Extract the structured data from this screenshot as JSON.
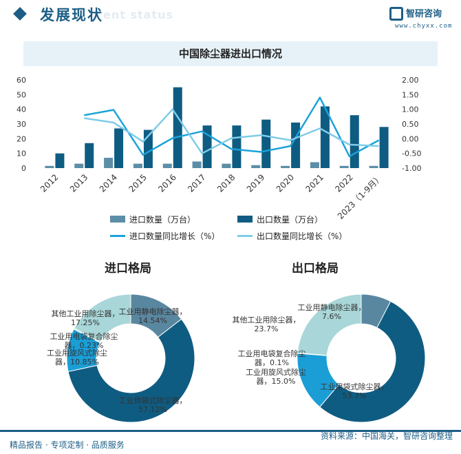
{
  "header": {
    "section_title": "发展现状",
    "section_subtitle": "ent status",
    "logo_name": "智研咨询",
    "logo_url": "www.chyxx.com"
  },
  "chart_title": "中国除尘器进出口情况",
  "colors": {
    "brand": "#1c5e86",
    "import_bar": "#5c8ea7",
    "export_bar": "#0f5c82",
    "import_growth": "#1aa3d9",
    "export_growth": "#7fcbe9",
    "title_bar_bg": "#e7f2f8"
  },
  "chart_data": [
    {
      "type": "bar",
      "categories": [
        "2012",
        "2013",
        "2014",
        "2015",
        "2016",
        "2017",
        "2018",
        "2019",
        "2020",
        "2021",
        "2022",
        "2023（1-9月）"
      ],
      "series": [
        {
          "name": "进口数量（万台）",
          "axis": "left",
          "values": [
            1.5,
            3,
            7,
            3,
            3,
            4.5,
            3,
            2,
            1.5,
            4,
            1.5,
            1.5
          ]
        },
        {
          "name": "出口数量（万台）",
          "axis": "left",
          "values": [
            10,
            17,
            27,
            26,
            55,
            29,
            29,
            33,
            31,
            42,
            36,
            28
          ]
        },
        {
          "name": "进口数量同比增长（%）",
          "type": "line",
          "axis": "right",
          "values": [
            null,
            0.8,
            0.98,
            -0.55,
            0.02,
            0.25,
            -0.35,
            -0.45,
            -0.25,
            1.4,
            -0.6,
            -0.05
          ]
        },
        {
          "name": "出口数量同比增长（%）",
          "type": "line",
          "axis": "right",
          "values": [
            null,
            0.7,
            0.55,
            -0.1,
            1.0,
            -0.5,
            0.02,
            0.12,
            -0.05,
            0.35,
            -0.2,
            -0.25
          ]
        }
      ],
      "y_left": {
        "ticks": [
          "0",
          "10",
          "20",
          "30",
          "40",
          "50",
          "60"
        ],
        "range": [
          0,
          60
        ]
      },
      "y_right": {
        "ticks": [
          "-1.00",
          "-0.50",
          "0.00",
          "0.50",
          "1.00",
          "1.50",
          "2.00"
        ],
        "range": [
          -1,
          2
        ]
      },
      "legend": [
        "进口数量（万台）",
        "出口数量（万台）",
        "进口数量同比增长（%）",
        "出口数量同比增长（%）"
      ],
      "legend_position": "bottom"
    },
    {
      "type": "pie",
      "title": "进口格局",
      "slices": [
        {
          "name": "工业用静电除尘器",
          "value": 14.54,
          "label": "工业用静电除尘器，\n14.54%",
          "color": "#5a87a0"
        },
        {
          "name": "工业用袋式除尘器",
          "value": 57.12,
          "label": "工业用袋式除尘器，\n57.12%",
          "color": "#0f5c82"
        },
        {
          "name": "工业用旋风式除尘器",
          "value": 10.85,
          "label": "工业用旋风式除尘\n器，10.85%",
          "color": "#1b9ed6"
        },
        {
          "name": "工业用电袋复合除尘器",
          "value": 0.23,
          "label": "工业用电袋复合除尘\n器，0.23%",
          "color": "#3fb4e3"
        },
        {
          "name": "其他工业用除尘器",
          "value": 17.25,
          "label": "其他工业用除尘器，\n17.25%",
          "color": "#a9d6d8"
        }
      ]
    },
    {
      "type": "pie",
      "title": "出口格局",
      "slices": [
        {
          "name": "工业用静电除尘器",
          "value": 7.6,
          "label": "工业用静电除尘器，\n7.6%",
          "color": "#5a87a0"
        },
        {
          "name": "工业用袋式除尘器",
          "value": 53.7,
          "label": "工业用袋式除尘器，\n53.7%",
          "color": "#0f5c82"
        },
        {
          "name": "工业用旋风式除尘器",
          "value": 15.0,
          "label": "工业用旋风式除尘\n器，15.0%",
          "color": "#1b9ed6"
        },
        {
          "name": "工业用电袋复合除尘器",
          "value": 0.1,
          "label": "工业用电袋复合除尘\n器，0.1%",
          "color": "#3fb4e3"
        },
        {
          "name": "其他工业用除尘器",
          "value": 23.7,
          "label": "其他工业用除尘器，\n23.7%",
          "color": "#a9d6d8"
        }
      ]
    }
  ],
  "footer": {
    "left": "精品报告 · 专项定制 · 品质服务",
    "right": "资料来源：中国海关，智研咨询整理"
  }
}
